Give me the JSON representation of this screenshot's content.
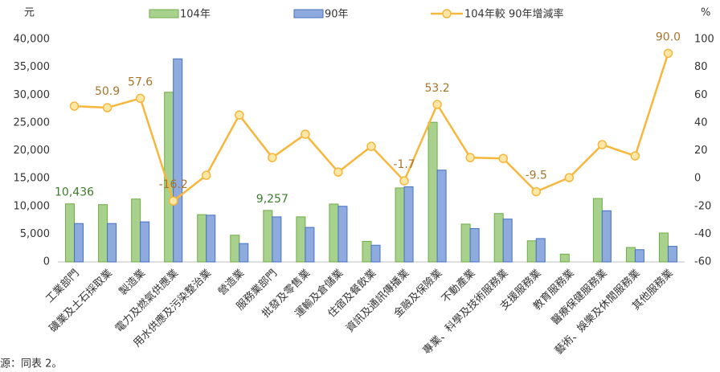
{
  "chart_data": {
    "type": "bar",
    "y_unit": "元",
    "y2_unit": "%",
    "note": "源：同表 2。",
    "categories": [
      "工業部門",
      "礦業及土石採取業",
      "製造業",
      "電力及燃氣供應業",
      "用水供應及污染整治業",
      "營造業",
      "服務業部門",
      "批發及零售業",
      "運輸及倉儲業",
      "住宿及餐飲業",
      "資訊及通訊傳播業",
      "金融及保險業",
      "不動產業",
      "專業、科學及技術服務業",
      "支援服務業",
      "教育服務業",
      "醫療保健服務業",
      "藝術、娛樂及休閒服務業",
      "其他服務業"
    ],
    "series": [
      {
        "name": "104年",
        "type": "bar",
        "color": "#a9d18e",
        "stroke": "#70ad47",
        "label_color": "#3b7d2a",
        "values": [
          10436,
          10300,
          11300,
          30500,
          8500,
          4800,
          9257,
          8100,
          10400,
          3700,
          13300,
          25100,
          6800,
          8700,
          3800,
          1400,
          11400,
          2600,
          5200
        ],
        "value_labels": [
          "10,436",
          null,
          null,
          null,
          null,
          null,
          "9,257",
          null,
          null,
          null,
          null,
          null,
          null,
          null,
          null,
          null,
          null,
          null,
          null
        ]
      },
      {
        "name": "90年",
        "type": "bar",
        "color": "#8faadc",
        "stroke": "#4472c4",
        "values": [
          6900,
          6900,
          7200,
          36500,
          8400,
          3300,
          8100,
          6200,
          10000,
          3000,
          13500,
          16500,
          6000,
          7700,
          4200,
          null,
          9200,
          2200,
          2800
        ]
      },
      {
        "name": "104年較 90年增減率",
        "type": "line",
        "axis": "y2",
        "color": "#f6b73c",
        "marker_fill": "#fde7a6",
        "label_color": "#a8742c",
        "values": [
          52.0,
          50.9,
          57.6,
          -16.2,
          2.3,
          45.6,
          15.0,
          31.8,
          4.6,
          23.1,
          -1.7,
          53.2,
          15.0,
          14.4,
          -9.5,
          0.6,
          24.3,
          16.2,
          90.0
        ],
        "value_labels": [
          null,
          "50.9",
          "57.6",
          "-16.2",
          null,
          null,
          null,
          null,
          null,
          null,
          "-1.7",
          "53.2",
          null,
          null,
          "-9.5",
          null,
          null,
          null,
          "90.0"
        ]
      }
    ],
    "ylim": [
      0,
      40000
    ],
    "yticks": [
      0,
      {
        "value": 5000,
        "label": "5,000"
      },
      {
        "value": 10000,
        "label": "10,000"
      },
      {
        "value": 15000,
        "label": "15,000"
      },
      {
        "value": 20000,
        "label": "20,000"
      },
      {
        "value": 25000,
        "label": "25,000"
      },
      {
        "value": 30000,
        "label": "30,000"
      },
      {
        "value": 35000,
        "label": "35,000"
      },
      {
        "value": 40000,
        "label": "40,000"
      }
    ],
    "y2lim": [
      -60,
      100
    ],
    "y2ticks": [
      -60,
      -40,
      -20,
      0,
      20,
      40,
      60,
      80,
      100
    ],
    "grid": false,
    "legend": "top"
  }
}
